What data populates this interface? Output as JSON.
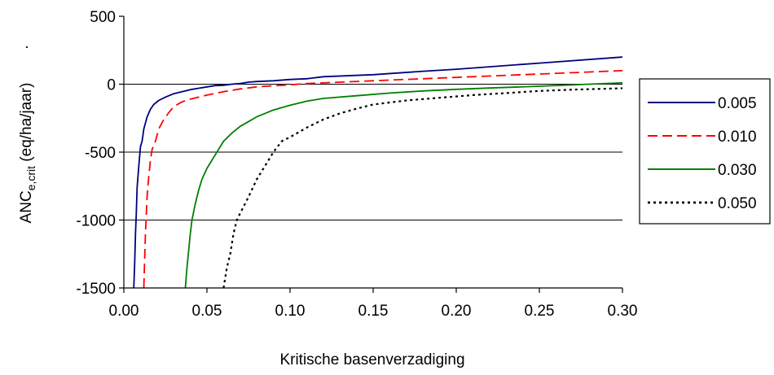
{
  "chart_data": {
    "type": "line",
    "xlabel": "Kritische basenverzadiging",
    "ylabel": {
      "main": "ANC",
      "subscript": "e,crit",
      "rest": " (eq/ha/jaar)",
      "mark": "."
    },
    "xlim": [
      0,
      0.3
    ],
    "ylim": [
      -1500,
      500
    ],
    "x_ticks": [
      "0.00",
      "0.05",
      "0.10",
      "0.15",
      "0.20",
      "0.25",
      "0.30"
    ],
    "y_ticks": [
      "500",
      "0",
      "-500",
      "-1000",
      "-1500"
    ],
    "y_tick_values": [
      500,
      0,
      -500,
      -1000,
      -1500
    ],
    "x_tick_values": [
      0,
      0.05,
      0.1,
      0.15,
      0.2,
      0.25,
      0.3
    ],
    "gridlines": "horizontal",
    "legend_position": "right",
    "series": [
      {
        "name": "0.005",
        "color": "#000080",
        "style": "solid",
        "points": [
          [
            0.006,
            -1500
          ],
          [
            0.0065,
            -1320
          ],
          [
            0.007,
            -1100
          ],
          [
            0.0075,
            -950
          ],
          [
            0.008,
            -760
          ],
          [
            0.009,
            -600
          ],
          [
            0.01,
            -460
          ],
          [
            0.011,
            -420
          ],
          [
            0.012,
            -330
          ],
          [
            0.014,
            -240
          ],
          [
            0.016,
            -185
          ],
          [
            0.018,
            -150
          ],
          [
            0.021,
            -120
          ],
          [
            0.025,
            -95
          ],
          [
            0.03,
            -70
          ],
          [
            0.035,
            -55
          ],
          [
            0.04,
            -40
          ],
          [
            0.045,
            -30
          ],
          [
            0.05,
            -20
          ],
          [
            0.055,
            -10
          ],
          [
            0.06,
            -8
          ],
          [
            0.065,
            0
          ],
          [
            0.07,
            5
          ],
          [
            0.075,
            15
          ],
          [
            0.08,
            20
          ],
          [
            0.09,
            25
          ],
          [
            0.1,
            35
          ],
          [
            0.11,
            40
          ],
          [
            0.12,
            55
          ],
          [
            0.15,
            70
          ],
          [
            0.18,
            95
          ],
          [
            0.2,
            110
          ],
          [
            0.25,
            155
          ],
          [
            0.3,
            200
          ]
        ]
      },
      {
        "name": "0.010",
        "color": "#ff0000",
        "style": "dashed",
        "points": [
          [
            0.012,
            -1500
          ],
          [
            0.0125,
            -1300
          ],
          [
            0.013,
            -1100
          ],
          [
            0.014,
            -820
          ],
          [
            0.015,
            -680
          ],
          [
            0.016,
            -560
          ],
          [
            0.017,
            -480
          ],
          [
            0.019,
            -420
          ],
          [
            0.021,
            -330
          ],
          [
            0.024,
            -260
          ],
          [
            0.027,
            -210
          ],
          [
            0.03,
            -165
          ],
          [
            0.035,
            -130
          ],
          [
            0.04,
            -110
          ],
          [
            0.05,
            -80
          ],
          [
            0.06,
            -55
          ],
          [
            0.07,
            -35
          ],
          [
            0.08,
            -20
          ],
          [
            0.09,
            -12
          ],
          [
            0.1,
            -5
          ],
          [
            0.11,
            5
          ],
          [
            0.13,
            15
          ],
          [
            0.15,
            25
          ],
          [
            0.18,
            40
          ],
          [
            0.2,
            50
          ],
          [
            0.25,
            75
          ],
          [
            0.3,
            100
          ]
        ]
      },
      {
        "name": "0.030",
        "color": "#008000",
        "style": "solid",
        "points": [
          [
            0.037,
            -1500
          ],
          [
            0.038,
            -1350
          ],
          [
            0.04,
            -1100
          ],
          [
            0.041,
            -1000
          ],
          [
            0.043,
            -880
          ],
          [
            0.045,
            -780
          ],
          [
            0.047,
            -700
          ],
          [
            0.05,
            -620
          ],
          [
            0.055,
            -520
          ],
          [
            0.06,
            -420
          ],
          [
            0.065,
            -360
          ],
          [
            0.07,
            -310
          ],
          [
            0.08,
            -240
          ],
          [
            0.09,
            -190
          ],
          [
            0.1,
            -155
          ],
          [
            0.11,
            -125
          ],
          [
            0.12,
            -105
          ],
          [
            0.14,
            -85
          ],
          [
            0.16,
            -65
          ],
          [
            0.18,
            -50
          ],
          [
            0.2,
            -38
          ],
          [
            0.22,
            -28
          ],
          [
            0.25,
            -15
          ],
          [
            0.28,
            0
          ],
          [
            0.3,
            10
          ]
        ]
      },
      {
        "name": "0.050",
        "color": "#000000",
        "style": "dotted",
        "points": [
          [
            0.06,
            -1500
          ],
          [
            0.062,
            -1350
          ],
          [
            0.064,
            -1250
          ],
          [
            0.066,
            -1100
          ],
          [
            0.068,
            -1000
          ],
          [
            0.07,
            -950
          ],
          [
            0.075,
            -830
          ],
          [
            0.08,
            -700
          ],
          [
            0.085,
            -600
          ],
          [
            0.09,
            -500
          ],
          [
            0.095,
            -420
          ],
          [
            0.1,
            -390
          ],
          [
            0.11,
            -320
          ],
          [
            0.12,
            -260
          ],
          [
            0.13,
            -215
          ],
          [
            0.14,
            -180
          ],
          [
            0.15,
            -150
          ],
          [
            0.17,
            -120
          ],
          [
            0.19,
            -100
          ],
          [
            0.21,
            -80
          ],
          [
            0.23,
            -65
          ],
          [
            0.25,
            -50
          ],
          [
            0.27,
            -40
          ],
          [
            0.3,
            -30
          ]
        ]
      }
    ]
  }
}
